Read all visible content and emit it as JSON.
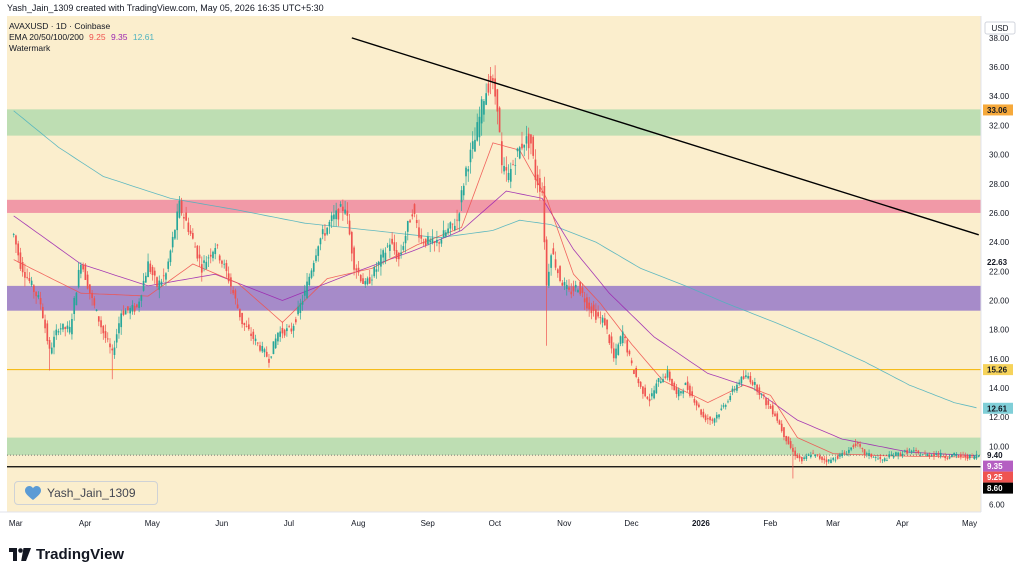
{
  "header": {
    "text": "Yash_Jain_1309 created with TradingView.com, May 05, 2026 16:35 UTC+5:30"
  },
  "legend": {
    "symbol_line": "AVAXUSD · 1D · Coinbase",
    "ema_label": "EMA 20/50/100/200",
    "ema_values": [
      "9.25",
      "9.35",
      "12.61"
    ],
    "watermark_label": "Watermark"
  },
  "watermark_box": {
    "text": "Yash_Jain_1309"
  },
  "footer": {
    "logo_text": "TradingView"
  },
  "colors": {
    "background": "#fbeecd",
    "green_zone": "#b7dbb0",
    "pink_zone": "#ef8fa3",
    "purple_zone": "#9c7fc9",
    "up_candle": "#26a69a",
    "down_candle": "#ef5350",
    "ema20": "#ef5350",
    "ema50": "#9c27b0",
    "ema200": "#4fb3bf",
    "orange_line": "#f4b400",
    "black_line": "#000000"
  },
  "chart_data": {
    "type": "candlestick",
    "title": "AVAXUSD · 1D · Coinbase",
    "currency_label": "USD",
    "ylim": [
      5.5,
      39.5
    ],
    "y_ticks": [
      "38.00",
      "36.00",
      "34.00",
      "32.00",
      "30.00",
      "28.00",
      "26.00",
      "24.00",
      "22.00",
      "20.00",
      "18.00",
      "16.00",
      "14.00",
      "12.00",
      "10.00",
      "8.00",
      "6.00"
    ],
    "x_labels": [
      {
        "label": "Mar",
        "day": 0
      },
      {
        "label": "Apr",
        "day": 31
      },
      {
        "label": "May",
        "day": 61
      },
      {
        "label": "Jun",
        "day": 92
      },
      {
        "label": "Jul",
        "day": 122
      },
      {
        "label": "Aug",
        "day": 153
      },
      {
        "label": "Sep",
        "day": 184
      },
      {
        "label": "Oct",
        "day": 214
      },
      {
        "label": "Nov",
        "day": 245
      },
      {
        "label": "Dec",
        "day": 275
      },
      {
        "label": "2026",
        "day": 306
      },
      {
        "label": "Feb",
        "day": 337
      },
      {
        "label": "Mar",
        "day": 365
      },
      {
        "label": "Apr",
        "day": 396
      },
      {
        "label": "May",
        "day": 426
      }
    ],
    "x_range_days": [
      -3,
      432
    ],
    "last_day": 431,
    "price_path": [
      [
        0,
        24.5
      ],
      [
        3,
        22.5
      ],
      [
        8,
        21.0
      ],
      [
        12,
        19.8
      ],
      [
        16,
        16.5
      ],
      [
        20,
        18.2
      ],
      [
        25,
        18.0
      ],
      [
        30,
        22.8
      ],
      [
        35,
        20.0
      ],
      [
        40,
        17.8
      ],
      [
        44,
        16.3
      ],
      [
        48,
        19.2
      ],
      [
        55,
        19.5
      ],
      [
        60,
        22.5
      ],
      [
        64,
        21.0
      ],
      [
        68,
        21.8
      ],
      [
        74,
        26.5
      ],
      [
        78,
        25.0
      ],
      [
        84,
        22.3
      ],
      [
        90,
        23.8
      ],
      [
        96,
        21.5
      ],
      [
        102,
        18.5
      ],
      [
        108,
        17.2
      ],
      [
        114,
        16.0
      ],
      [
        118,
        17.8
      ],
      [
        124,
        18.0
      ],
      [
        130,
        20.5
      ],
      [
        136,
        24.0
      ],
      [
        142,
        25.5
      ],
      [
        148,
        26.5
      ],
      [
        152,
        22.5
      ],
      [
        157,
        21.0
      ],
      [
        162,
        22.2
      ],
      [
        168,
        24.0
      ],
      [
        172,
        22.8
      ],
      [
        178,
        26.2
      ],
      [
        182,
        24.2
      ],
      [
        188,
        23.8
      ],
      [
        194,
        24.8
      ],
      [
        198,
        25.5
      ],
      [
        202,
        29.0
      ],
      [
        206,
        31.0
      ],
      [
        210,
        34.0
      ],
      [
        213,
        35.2
      ],
      [
        216,
        33.5
      ],
      [
        218,
        29.0
      ],
      [
        221,
        28.5
      ],
      [
        224,
        29.8
      ],
      [
        228,
        31.0
      ],
      [
        231,
        30.8
      ],
      [
        233,
        28.5
      ],
      [
        236,
        27.5
      ],
      [
        238,
        21.0
      ],
      [
        240,
        23.5
      ],
      [
        244,
        21.5
      ],
      [
        248,
        20.5
      ],
      [
        252,
        21.0
      ],
      [
        256,
        19.8
      ],
      [
        260,
        19.0
      ],
      [
        264,
        18.5
      ],
      [
        268,
        16.0
      ],
      [
        272,
        17.8
      ],
      [
        276,
        15.5
      ],
      [
        280,
        14.0
      ],
      [
        284,
        13.2
      ],
      [
        288,
        14.5
      ],
      [
        292,
        15.0
      ],
      [
        296,
        13.5
      ],
      [
        300,
        14.2
      ],
      [
        304,
        13.2
      ],
      [
        308,
        12.0
      ],
      [
        312,
        11.8
      ],
      [
        316,
        12.5
      ],
      [
        320,
        13.5
      ],
      [
        324,
        14.5
      ],
      [
        328,
        14.8
      ],
      [
        332,
        14.0
      ],
      [
        336,
        13.0
      ],
      [
        340,
        12.2
      ],
      [
        344,
        10.8
      ],
      [
        348,
        9.6
      ],
      [
        352,
        9.0
      ],
      [
        356,
        9.5
      ],
      [
        360,
        9.2
      ],
      [
        364,
        9.0
      ],
      [
        368,
        9.3
      ],
      [
        372,
        9.6
      ],
      [
        376,
        10.2
      ],
      [
        380,
        9.5
      ],
      [
        384,
        9.3
      ],
      [
        388,
        9.0
      ],
      [
        392,
        9.4
      ],
      [
        396,
        9.5
      ],
      [
        400,
        9.7
      ],
      [
        404,
        9.5
      ],
      [
        408,
        9.4
      ],
      [
        412,
        9.5
      ],
      [
        416,
        9.3
      ],
      [
        420,
        9.4
      ],
      [
        424,
        9.3
      ],
      [
        428,
        9.3
      ],
      [
        431,
        9.4
      ]
    ],
    "candle_spikes": [
      [
        16,
        15.2,
        "low"
      ],
      [
        44,
        14.6,
        "low"
      ],
      [
        114,
        15.4,
        "low"
      ],
      [
        213,
        36.0,
        "high"
      ],
      [
        238,
        16.9,
        "low"
      ],
      [
        348,
        7.8,
        "low"
      ],
      [
        376,
        10.5,
        "high"
      ]
    ],
    "ema20_path": [
      [
        0,
        22.8
      ],
      [
        30,
        20.5
      ],
      [
        60,
        20.3
      ],
      [
        80,
        22.5
      ],
      [
        100,
        21.2
      ],
      [
        120,
        18.5
      ],
      [
        140,
        21.5
      ],
      [
        160,
        22.2
      ],
      [
        180,
        23.8
      ],
      [
        200,
        25.0
      ],
      [
        214,
        30.8
      ],
      [
        226,
        30.3
      ],
      [
        238,
        27.0
      ],
      [
        250,
        21.8
      ],
      [
        262,
        19.8
      ],
      [
        276,
        17.0
      ],
      [
        290,
        14.5
      ],
      [
        310,
        13.0
      ],
      [
        326,
        14.2
      ],
      [
        338,
        13.5
      ],
      [
        350,
        10.6
      ],
      [
        366,
        9.5
      ],
      [
        390,
        9.35
      ],
      [
        431,
        9.25
      ]
    ],
    "ema50_path": [
      [
        0,
        25.8
      ],
      [
        30,
        22.5
      ],
      [
        60,
        21.0
      ],
      [
        90,
        21.8
      ],
      [
        120,
        20.0
      ],
      [
        150,
        21.8
      ],
      [
        180,
        23.5
      ],
      [
        200,
        24.8
      ],
      [
        220,
        27.5
      ],
      [
        236,
        27.0
      ],
      [
        250,
        23.5
      ],
      [
        266,
        20.5
      ],
      [
        286,
        17.5
      ],
      [
        310,
        15.0
      ],
      [
        330,
        14.0
      ],
      [
        350,
        11.8
      ],
      [
        370,
        10.5
      ],
      [
        400,
        9.6
      ],
      [
        431,
        9.35
      ]
    ],
    "ema200_path": [
      [
        0,
        33.0
      ],
      [
        20,
        30.5
      ],
      [
        40,
        28.5
      ],
      [
        70,
        27.0
      ],
      [
        100,
        26.2
      ],
      [
        130,
        25.3
      ],
      [
        160,
        24.8
      ],
      [
        190,
        24.3
      ],
      [
        214,
        24.8
      ],
      [
        226,
        25.5
      ],
      [
        240,
        25.2
      ],
      [
        260,
        24.0
      ],
      [
        280,
        22.2
      ],
      [
        300,
        21.0
      ],
      [
        320,
        19.7
      ],
      [
        340,
        18.5
      ],
      [
        360,
        17.2
      ],
      [
        380,
        15.8
      ],
      [
        400,
        14.2
      ],
      [
        420,
        13.0
      ],
      [
        431,
        12.61
      ]
    ],
    "zones": [
      {
        "name": "green-zone-upper",
        "from": 31.3,
        "to": 33.1,
        "color": "#b7dbb0"
      },
      {
        "name": "pink-zone",
        "from": 26.0,
        "to": 26.9,
        "color": "#ef8fa3"
      },
      {
        "name": "purple-zone",
        "from": 19.3,
        "to": 21.0,
        "color": "#9c7fc9"
      },
      {
        "name": "green-zone-lower",
        "from": 9.4,
        "to": 10.6,
        "color": "#b7dbb0"
      }
    ],
    "horizontal_lines": [
      {
        "name": "orange-line",
        "value": 15.26,
        "color": "#f4b400"
      },
      {
        "name": "support-line",
        "value": 8.6,
        "color": "#000000"
      },
      {
        "name": "dotted-line",
        "value": 9.4,
        "color": "#555555"
      }
    ],
    "trendline": {
      "from": [
        151,
        38.0
      ],
      "to": [
        431,
        24.5
      ]
    },
    "price_badges": [
      {
        "value": 33.06,
        "label": "33.06",
        "bg": "#f6a93b",
        "fg": "#131722"
      },
      {
        "value": 22.63,
        "label": "22.63",
        "bg": "#ffffff",
        "fg": "#131722"
      },
      {
        "value": 15.26,
        "label": "15.26",
        "bg": "#f6d35b",
        "fg": "#131722"
      },
      {
        "value": 12.61,
        "label": "12.61",
        "bg": "#80cfd8",
        "fg": "#131722"
      },
      {
        "value": 9.4,
        "label": "9.40",
        "bg": "#ffffff",
        "fg": "#131722"
      },
      {
        "value": 9.35,
        "label": "9.35",
        "bg": "#b45fc2",
        "fg": "#ffffff"
      },
      {
        "value": 9.25,
        "label": "9.25",
        "bg": "#ef5350",
        "fg": "#ffffff"
      },
      {
        "value": 8.6,
        "label": "8.60",
        "bg": "#000000",
        "fg": "#ffffff"
      }
    ]
  }
}
